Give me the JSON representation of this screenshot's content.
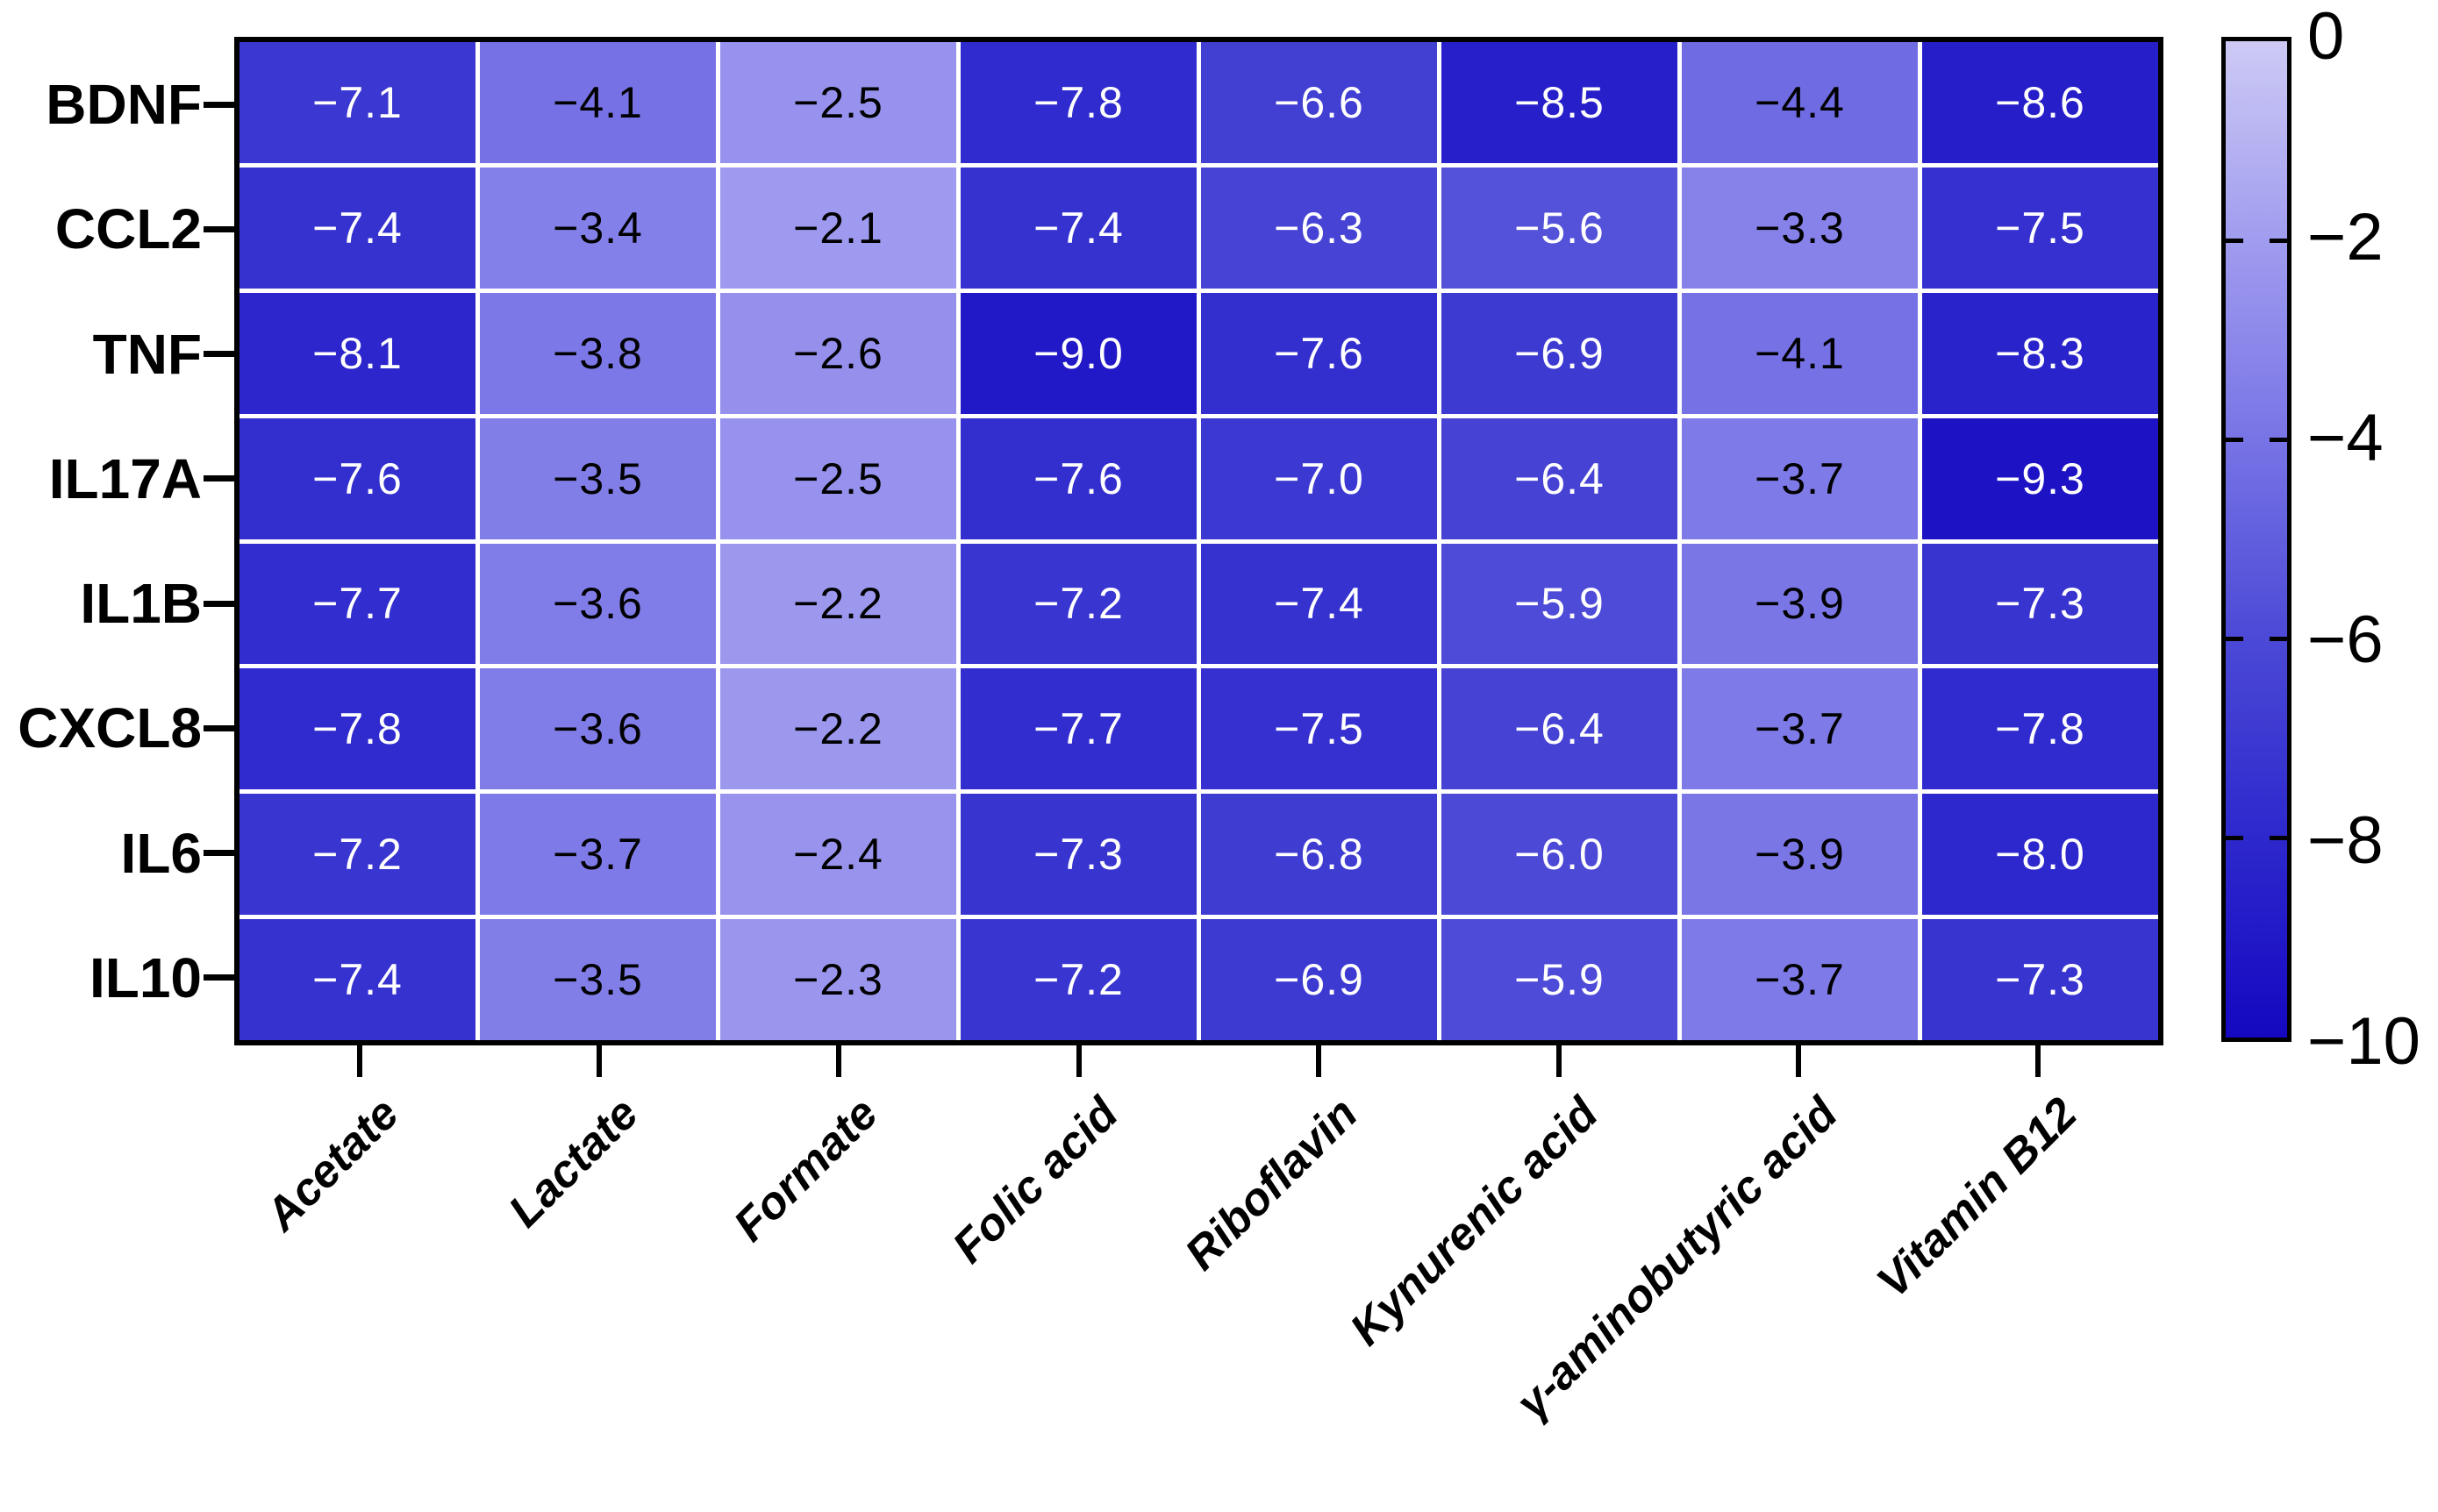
{
  "chart_data": {
    "type": "heatmap",
    "rows": [
      "BDNF",
      "CCL2",
      "TNF",
      "IL17A",
      "IL1B",
      "CXCL8",
      "IL6",
      "IL10"
    ],
    "columns": [
      "Acetate",
      "Lactate",
      "Formate",
      "Folic acid",
      "Riboflavin",
      "Kynurenic acid",
      "γ-aminobutyric acid",
      "Vitamin B12"
    ],
    "values": [
      [
        -7.1,
        -4.1,
        -2.5,
        -7.8,
        -6.6,
        -8.5,
        -4.4,
        -8.6
      ],
      [
        -7.4,
        -3.4,
        -2.1,
        -7.4,
        -6.3,
        -5.6,
        -3.3,
        -7.5
      ],
      [
        -8.1,
        -3.8,
        -2.6,
        -9.0,
        -7.6,
        -6.9,
        -4.1,
        -8.3
      ],
      [
        -7.6,
        -3.5,
        -2.5,
        -7.6,
        -7.0,
        -6.4,
        -3.7,
        -9.3
      ],
      [
        -7.7,
        -3.6,
        -2.2,
        -7.2,
        -7.4,
        -5.9,
        -3.9,
        -7.3
      ],
      [
        -7.8,
        -3.6,
        -2.2,
        -7.7,
        -7.5,
        -6.4,
        -3.7,
        -7.8
      ],
      [
        -7.2,
        -3.7,
        -2.4,
        -7.3,
        -6.8,
        -6.0,
        -3.9,
        -8.0
      ],
      [
        -7.4,
        -3.5,
        -2.3,
        -7.2,
        -6.9,
        -5.9,
        -3.7,
        -7.3
      ]
    ],
    "value_decimals": 1,
    "colorbar": {
      "min": -10,
      "max": 0,
      "ticks": [
        0,
        -2,
        -4,
        -6,
        -8,
        -10
      ],
      "gradient_stops": [
        {
          "value": 0,
          "color": "#cdcaf5"
        },
        {
          "value": -2,
          "color": "#a09cef"
        },
        {
          "value": -4,
          "color": "#7874e6"
        },
        {
          "value": -6,
          "color": "#4b49d6"
        },
        {
          "value": -8,
          "color": "#2d28cd"
        },
        {
          "value": -10,
          "color": "#1508c0"
        }
      ],
      "position": "right"
    },
    "cell_text_color_dark_cells": "#ffffff",
    "cell_text_color_light_cells": "#000000",
    "cell_text_white_threshold": -5,
    "grid_line_color": "#ffffff",
    "outer_border_color": "#000000",
    "xlabel": "",
    "ylabel": "",
    "title": ""
  }
}
